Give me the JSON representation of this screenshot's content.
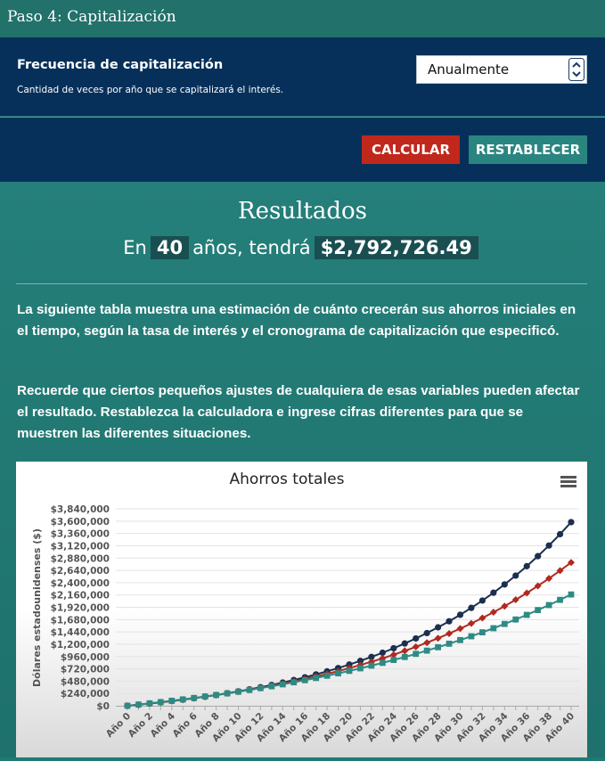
{
  "header": {
    "title": "Paso 4: Capitalización"
  },
  "frequency": {
    "label": "Frecuencia de capitalización",
    "help": "Cantidad de veces por año que se capitalizará el interés.",
    "selected": "Anualmente"
  },
  "buttons": {
    "calculate": "CALCULAR",
    "reset": "RESTABLECER"
  },
  "results": {
    "title": "Resultados",
    "prefix": "En",
    "years": 40,
    "middle": "años, tendrá",
    "amount": "$2,792,726.49"
  },
  "paragraphs": [
    "La siguiente tabla muestra una estimación de cuánto crecerán sus ahorros iniciales en el tiempo, según la tasa de interés y el cronograma de capitalización que especificó.",
    "Recuerde que ciertos pequeños ajustes de cualquiera de esas variables pueden afectar el resultado. Restablezca la calculadora e ingrese cifras diferentes para que se muestren las diferentes situaciones."
  ],
  "chart_data": {
    "type": "line",
    "title": "Ahorros totales",
    "y_label": "Dólares estadounidenses ($)",
    "categories": [
      "Año 0",
      null,
      "Año 2",
      null,
      "Año 4",
      null,
      "Año 6",
      null,
      "Año 8",
      null,
      "Año 10",
      null,
      "Año 12",
      null,
      "Año 14",
      null,
      "Año 16",
      null,
      "Año 18",
      null,
      "Año 20",
      null,
      "Año 22",
      null,
      "Año 24",
      null,
      "Año 26",
      null,
      "Año 28",
      null,
      "Año 30",
      null,
      "Año 32",
      null,
      "Año 34",
      null,
      "Año 36",
      null,
      "Año 38",
      null,
      "Año 40"
    ],
    "series": [
      {
        "color": "#1b2f4e",
        "marker": "circle",
        "values": [
          0,
          20900,
          43200,
          66800,
          92000,
          118800,
          147300,
          177700,
          209900,
          244300,
          280800,
          319700,
          361100,
          405100,
          451900,
          501700,
          554800,
          611200,
          671200,
          735100,
          803000,
          875300,
          952300,
          1034100,
          1121200,
          1213900,
          1312500,
          1417400,
          1529000,
          1647700,
          1774100,
          1908600,
          2051600,
          2203900,
          2365800,
          2538100,
          2721500,
          2916500,
          3124100,
          3345000,
          3580000
        ]
      },
      {
        "color": "#b02a1f",
        "marker": "diamond",
        "values": [
          0,
          21500,
          44100,
          68000,
          93100,
          119500,
          147400,
          176700,
          207500,
          240100,
          274300,
          310300,
          348300,
          388200,
          430300,
          474600,
          521300,
          570400,
          622100,
          676600,
          734000,
          794400,
          858000,
          925000,
          995500,
          1069700,
          1147900,
          1230200,
          1316900,
          1408300,
          1504400,
          1605600,
          1712200,
          1824500,
          1942700,
          2067100,
          2198200,
          2336200,
          2481500,
          2634500,
          2792726.49
        ]
      },
      {
        "color": "#2e8b84",
        "marker": "square",
        "values": [
          0,
          22800,
          46600,
          71300,
          97000,
          123700,
          151500,
          180300,
          210400,
          241700,
          274100,
          308000,
          343100,
          379700,
          417700,
          457200,
          498400,
          541200,
          585600,
          631900,
          680000,
          730100,
          782100,
          836200,
          892500,
          951000,
          1011900,
          1075200,
          1141100,
          1209600,
          1280800,
          1354800,
          1431900,
          1512000,
          1595300,
          1681900,
          1772000,
          1865800,
          1963200,
          2064600,
          2170000
        ]
      }
    ],
    "ylim": [
      0,
      3840000
    ],
    "yticks": [
      {
        "value": 0,
        "label": "$0"
      },
      {
        "value": 240000,
        "label": "$240,000"
      },
      {
        "value": 480000,
        "label": "$480,000"
      },
      {
        "value": 720000,
        "label": "$720,000"
      },
      {
        "value": 960000,
        "label": "$960,000"
      },
      {
        "value": 1200000,
        "label": "$1,200,000"
      },
      {
        "value": 1440000,
        "label": "$1,440,000"
      },
      {
        "value": 1680000,
        "label": "$1,680,000"
      },
      {
        "value": 1920000,
        "label": "$1,920,000"
      },
      {
        "value": 2160000,
        "label": "$2,160,000"
      },
      {
        "value": 2400000,
        "label": "$2,400,000"
      },
      {
        "value": 2640000,
        "label": "$2,640,000"
      },
      {
        "value": 2880000,
        "label": "$2,880,000"
      },
      {
        "value": 3120000,
        "label": "$3,120,000"
      },
      {
        "value": 3360000,
        "label": "$3,360,000"
      },
      {
        "value": 3600000,
        "label": "$3,600,000"
      },
      {
        "value": 3840000,
        "label": "$3,840,000"
      }
    ],
    "grid": true
  }
}
